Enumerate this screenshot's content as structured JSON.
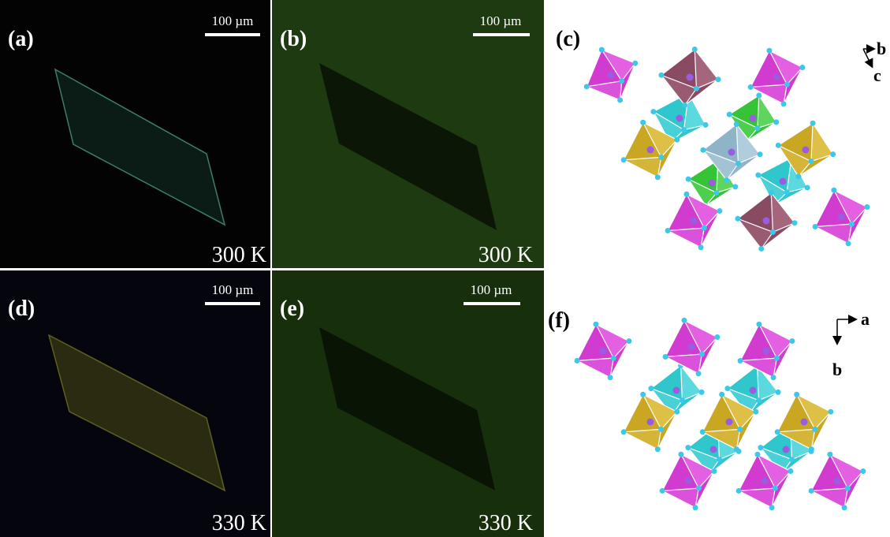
{
  "panels": [
    {
      "label": "(a)",
      "scale_bar": "100 µm",
      "temperature": "300 K"
    },
    {
      "label": "(b)",
      "scale_bar": "100 µm",
      "temperature": "300 K"
    },
    {
      "label": "(d)",
      "scale_bar": "100 µm",
      "temperature": "330 K"
    },
    {
      "label": "(e)",
      "scale_bar": "100 µm",
      "temperature": "330 K"
    }
  ],
  "structures": [
    {
      "label": "(c)",
      "axes": [
        "b",
        "c"
      ]
    },
    {
      "label": "(f)",
      "axes": [
        "a",
        "b"
      ]
    }
  ]
}
